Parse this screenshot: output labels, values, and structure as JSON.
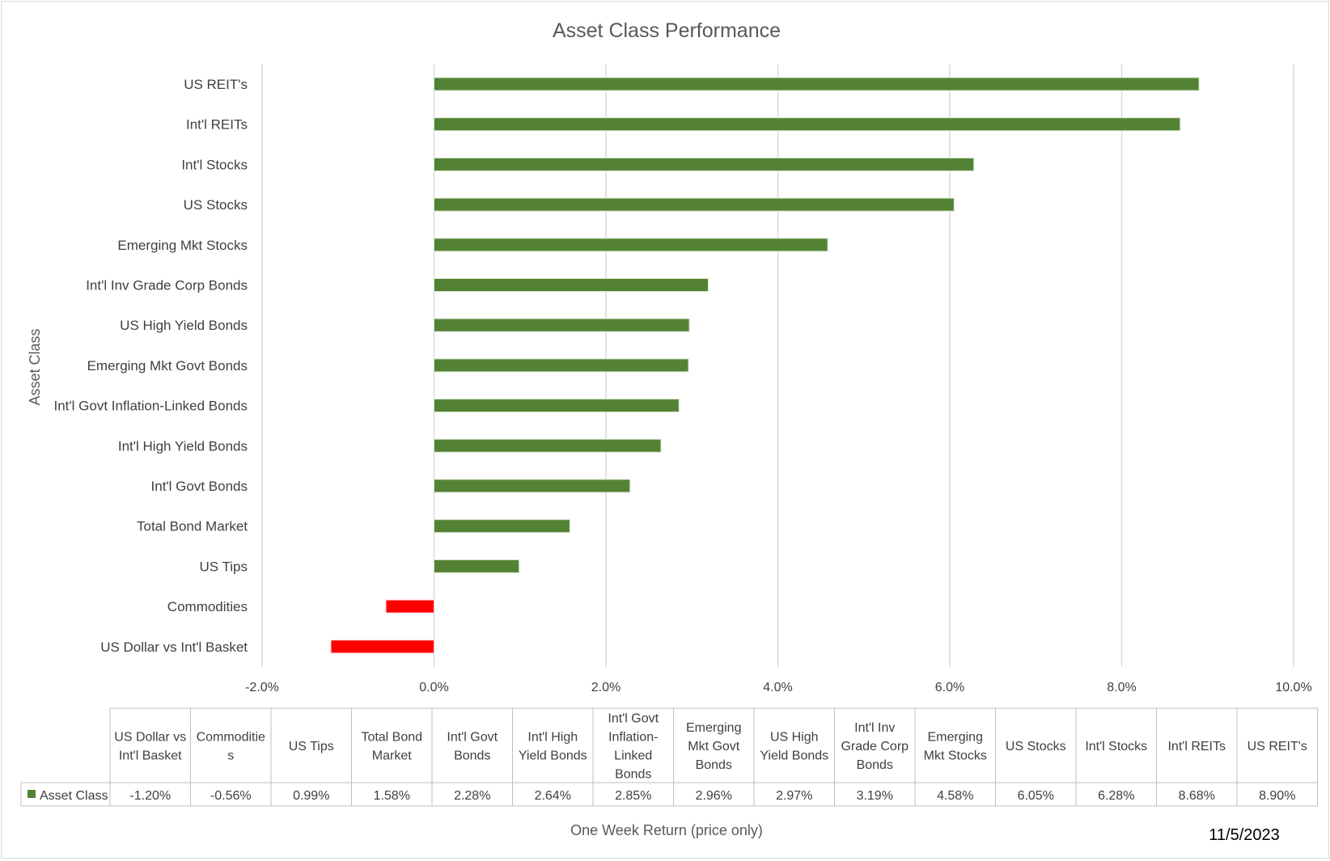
{
  "chart_data": {
    "type": "bar",
    "orientation": "horizontal",
    "title": "Asset Class Performance",
    "xlabel": "One Week Return (price only)",
    "ylabel": "Asset Class",
    "date": "11/5/2023",
    "xlim": [
      -2.0,
      10.0
    ],
    "x_ticks": [
      "-2.0%",
      "0.0%",
      "2.0%",
      "4.0%",
      "6.0%",
      "8.0%",
      "10.0%"
    ],
    "x_tick_values": [
      -2,
      0,
      2,
      4,
      6,
      8,
      10
    ],
    "grid": true,
    "colors": {
      "positive": "#548235",
      "negative": "#ff0000",
      "grid": "#d9d9d9",
      "table_border": "#bfbfbf"
    },
    "series": [
      {
        "name": "Asset Class",
        "categories": [
          "US Dollar vs Int'l Basket",
          "Commodities",
          "US Tips",
          "Total Bond Market",
          "Int'l Govt Bonds",
          "Int'l High Yield Bonds",
          "Int'l Govt Inflation-Linked Bonds",
          "Emerging Mkt Govt Bonds",
          "US High Yield Bonds",
          "Int'l Inv Grade Corp Bonds",
          "Emerging Mkt Stocks",
          "US Stocks",
          "Int'l Stocks",
          "Int'l REITs",
          "US REIT's"
        ],
        "values": [
          -1.2,
          -0.56,
          0.99,
          1.58,
          2.28,
          2.64,
          2.85,
          2.96,
          2.97,
          3.19,
          4.58,
          6.05,
          6.28,
          8.68,
          8.9
        ],
        "value_labels": [
          "-1.20%",
          "-0.56%",
          "0.99%",
          "1.58%",
          "2.28%",
          "2.64%",
          "2.85%",
          "2.96%",
          "2.97%",
          "3.19%",
          "4.58%",
          "6.05%",
          "6.28%",
          "8.68%",
          "8.90%"
        ]
      }
    ],
    "data_table": {
      "headers": [
        [
          "US Dollar vs",
          "Int'l Basket"
        ],
        [
          "Commoditie",
          "s"
        ],
        [
          "US Tips"
        ],
        [
          "Total Bond",
          "Market"
        ],
        [
          "Int'l Govt",
          "Bonds"
        ],
        [
          "Int'l High",
          "Yield Bonds"
        ],
        [
          "Int'l Govt",
          "Inflation-",
          "Linked",
          "Bonds"
        ],
        [
          "Emerging",
          "Mkt Govt",
          "Bonds"
        ],
        [
          "US High",
          "Yield Bonds"
        ],
        [
          "Int'l Inv",
          "Grade Corp",
          "Bonds"
        ],
        [
          "Emerging",
          "Mkt Stocks"
        ],
        [
          "US Stocks"
        ],
        [
          "Int'l Stocks"
        ],
        [
          "Int'l REITs"
        ],
        [
          "US REIT's"
        ]
      ],
      "row_label": "Asset Class"
    }
  }
}
